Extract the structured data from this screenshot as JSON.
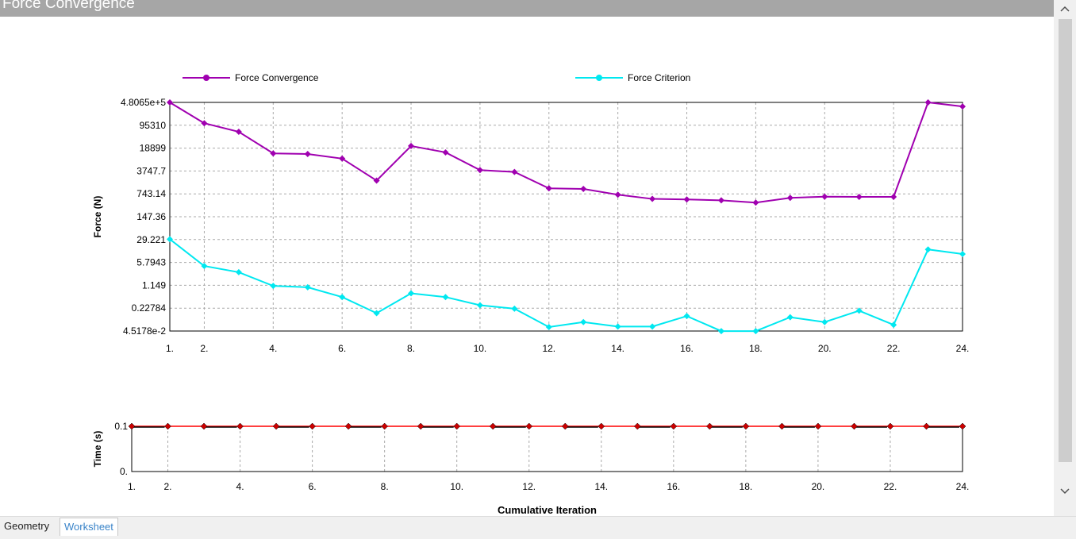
{
  "window": {
    "title": "Force Convergence"
  },
  "tabs": [
    {
      "label": "Geometry",
      "active": false
    },
    {
      "label": "Worksheet",
      "active": true
    }
  ],
  "icons": {
    "scroll_up": "chevron-up-icon",
    "scroll_down": "chevron-down-icon"
  },
  "colors": {
    "force_convergence": "#a000b0",
    "force_criterion": "#00e8f0",
    "time_line": "#ff0000",
    "time_marker": "#cc0000"
  },
  "chart_data": [
    {
      "type": "line",
      "title": "",
      "xlabel": "",
      "ylabel": "Force (N)",
      "yscale": "log",
      "ylim": [
        0.045178,
        480650
      ],
      "xlim": [
        1,
        24
      ],
      "x_ticks": [
        "1.",
        "2.",
        "4.",
        "6.",
        "8.",
        "10.",
        "12.",
        "14.",
        "16.",
        "18.",
        "20.",
        "22.",
        "24."
      ],
      "y_ticks": [
        "4.8065e+5",
        "95310",
        "18899",
        "3747.7",
        "743.14",
        "147.36",
        "29.221",
        "5.7943",
        "1.149",
        "0.22784",
        "4.5178e-2"
      ],
      "grid": true,
      "legend_position": "top",
      "x": [
        1,
        2,
        3,
        4,
        5,
        6,
        7,
        8,
        9,
        10,
        11,
        12,
        13,
        14,
        15,
        16,
        17,
        18,
        19,
        20,
        21,
        22,
        23,
        24
      ],
      "series": [
        {
          "name": "Force Convergence",
          "color": "#a000b0",
          "values": [
            480650,
            110000,
            60000,
            13000,
            12500,
            9000,
            1900,
            22000,
            14000,
            4000,
            3500,
            1100,
            1050,
            700,
            520,
            500,
            470,
            400,
            560,
            610,
            600,
            600,
            480650,
            360000
          ]
        },
        {
          "name": "Force Criterion",
          "color": "#00e8f0",
          "values": [
            30,
            4.5,
            2.9,
            1.1,
            1.0,
            0.5,
            0.16,
            0.65,
            0.5,
            0.28,
            0.22,
            0.06,
            0.085,
            0.062,
            0.062,
            0.13,
            0.045,
            0.045,
            0.12,
            0.085,
            0.19,
            0.07,
            14.5,
            10.5
          ]
        }
      ]
    },
    {
      "type": "line",
      "title": "",
      "xlabel": "Cumulative Iteration",
      "ylabel": "Time (s)",
      "ylim": [
        0,
        0.1
      ],
      "xlim": [
        1,
        24
      ],
      "x_ticks": [
        "1.",
        "2.",
        "4.",
        "6.",
        "8.",
        "10.",
        "12.",
        "14.",
        "16.",
        "18.",
        "20.",
        "22.",
        "24."
      ],
      "y_ticks": [
        "0.1",
        "0."
      ],
      "grid": true,
      "x": [
        1,
        2,
        3,
        4,
        5,
        6,
        7,
        8,
        9,
        10,
        11,
        12,
        13,
        14,
        15,
        16,
        17,
        18,
        19,
        20,
        21,
        22,
        23,
        24
      ],
      "series": [
        {
          "color": "#ff0000",
          "values": [
            0.1,
            0.1,
            0.1,
            0.1,
            0.1,
            0.1,
            0.1,
            0.1,
            0.1,
            0.1,
            0.1,
            0.1,
            0.1,
            0.1,
            0.1,
            0.1,
            0.1,
            0.1,
            0.1,
            0.1,
            0.1,
            0.1,
            0.1,
            0.1
          ]
        }
      ]
    }
  ]
}
